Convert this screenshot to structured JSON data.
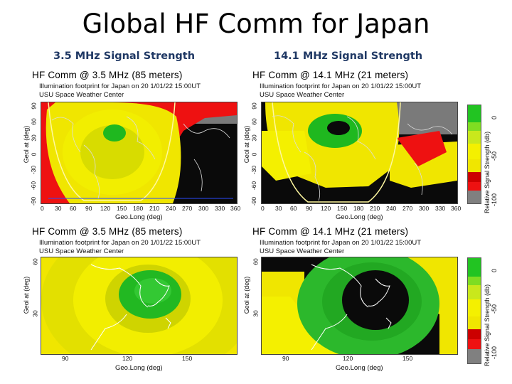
{
  "slide": {
    "title": "Global HF Comm for Japan",
    "left_heading": "3.5 MHz Signal Strength",
    "right_heading": "14.1 MHz Signal Strength"
  },
  "panels": {
    "tl": {
      "title": "HF Comm @ 3.5 MHz (85 meters)",
      "sub1": "Illumination footprint for Japan on 20 1/01/22 15:00UT",
      "sub2": "USU Space Weather Center",
      "ylabel": "Geol at (deg)",
      "xlabel": "Geo.Long (deg)",
      "xticks": [
        "0",
        "30",
        "60",
        "90",
        "120",
        "150",
        "180",
        "210",
        "240",
        "270",
        "300",
        "330",
        "360"
      ],
      "yticks": [
        "90",
        "60",
        "30",
        "0",
        "-30",
        "-60",
        "-90"
      ]
    },
    "tr": {
      "title": "HF Comm @ 14.1 MHz (21 meters)",
      "sub1": "Illumination footprint for Japan on 20 1/01/22 15:00UT",
      "sub2": "USU Space Weather Center",
      "ylabel": "Geol at (deg)",
      "xlabel": "Geo.Long (deg)",
      "xticks": [
        "0",
        "30",
        "60",
        "90",
        "120",
        "150",
        "180",
        "210",
        "240",
        "270",
        "300",
        "330",
        "360"
      ],
      "yticks": [
        "90",
        "60",
        "30",
        "0",
        "-30",
        "-60",
        "-90"
      ]
    },
    "bl": {
      "title": "HF Comm @ 3.5 MHz (85 meters)",
      "sub1": "Illumination footprint for Japan on 20 1/01/22 15:00UT",
      "sub2": "USU Space Weather Center",
      "ylabel": "Geol at (deg)",
      "xlabel": "Geo.Long (deg)",
      "xticks": [
        "90",
        "120",
        "150"
      ],
      "yticks": [
        "60",
        "30"
      ]
    },
    "br": {
      "title": "HF Comm @ 14.1 MHz (21 meters)",
      "sub1": "Illumination footprint for Japan on 20 1/01/22 15:00UT",
      "sub2": "USU Space Weather Center",
      "ylabel": "Geol at (deg)",
      "xlabel": "Geo.Long (deg)",
      "xticks": [
        "90",
        "120",
        "150"
      ],
      "yticks": [
        "60",
        "30"
      ]
    }
  },
  "colorbar": {
    "label": "Relative Signal Strength (db)",
    "ticks": [
      "0",
      "-50",
      "-100"
    ],
    "colors": [
      "#22c422",
      "#7fdd22",
      "#c9e81c",
      "#f4f000",
      "#f0e600",
      "#cc0000",
      "#ee1111",
      "#808080",
      "#a6a6a6"
    ]
  }
}
